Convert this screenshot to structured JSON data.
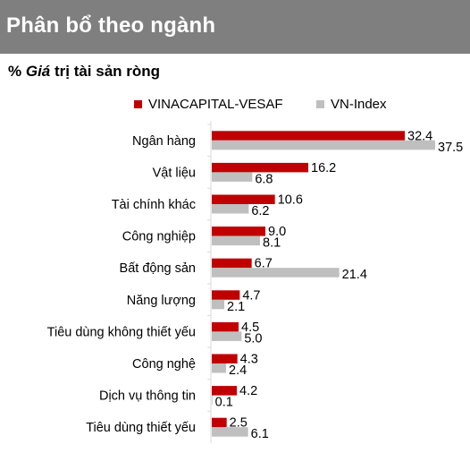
{
  "header": {
    "title": "Phân bổ theo ngành"
  },
  "subtitle": {
    "prefix": "% ",
    "italic": "Giá",
    "rest": " trị tài sản ròng"
  },
  "colors": {
    "header_bg": "#7f7f7f",
    "fund": "#c00000",
    "index": "#bfbfbf",
    "axis": "#d9d9d9"
  },
  "chart_data": {
    "type": "bar",
    "orientation": "horizontal",
    "title": "Phân bổ theo ngành",
    "subtitle": "% Giá trị tài sản ròng",
    "legend_position": "top",
    "grid": false,
    "categories": [
      "Ngân hàng",
      "Vật liệu",
      "Tài chính khác",
      "Công nghiệp",
      "Bất động sản",
      "Năng lượng",
      "Tiêu dùng không thiết yếu",
      "Công nghệ",
      "Dịch vụ thông tin",
      "Tiêu dùng thiết yếu"
    ],
    "series": [
      {
        "name": "VINACAPITAL-VESAF",
        "values": [
          32.4,
          16.2,
          10.6,
          9.0,
          6.7,
          4.7,
          4.5,
          4.3,
          4.2,
          2.5
        ]
      },
      {
        "name": "VN-Index",
        "values": [
          37.5,
          6.8,
          6.2,
          8.1,
          21.4,
          2.1,
          5.0,
          2.4,
          0.1,
          6.1
        ]
      }
    ],
    "xlim": [
      0,
      40
    ]
  }
}
